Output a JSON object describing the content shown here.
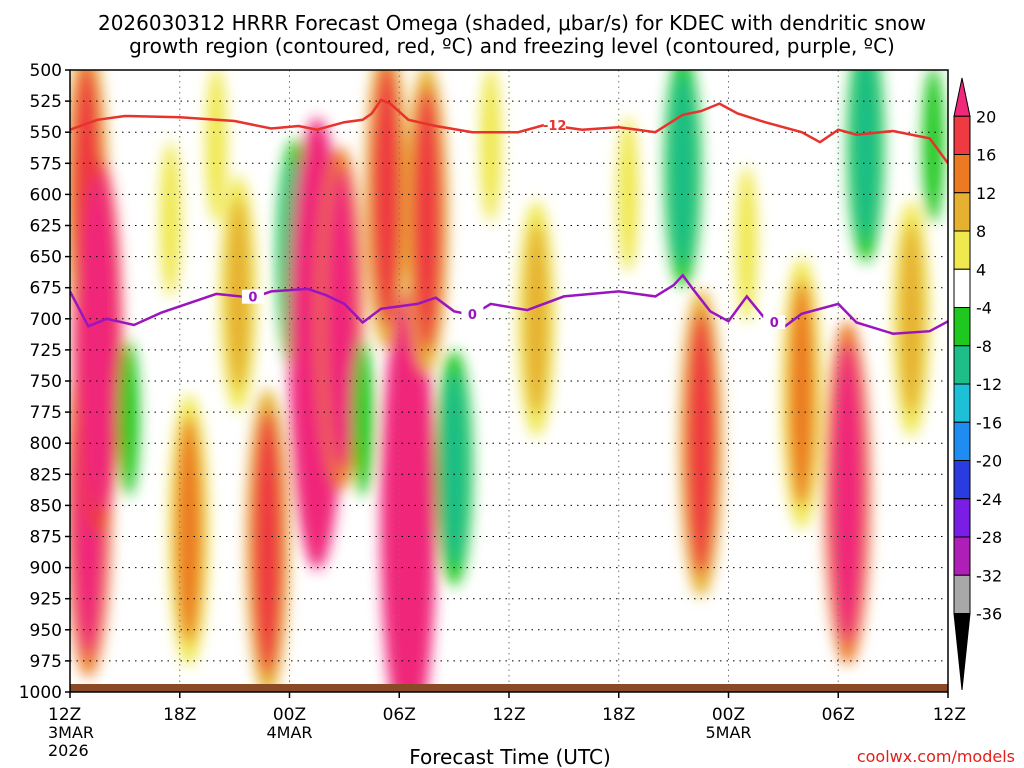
{
  "chart_data": {
    "type": "heatmap",
    "title_line1": "2026030312 HRRR Forecast Omega (shaded, μbar/s) for KDEC with dendritic snow",
    "title_line2": "growth region (contoured, red, ºC) and freezing level (contoured, purple, ºC)",
    "xlabel": "Forecast Time (UTC)",
    "credit": "coolwx.com/models",
    "x_ticks": [
      {
        "hour": 0,
        "label": "12Z",
        "date": "3MAR",
        "year": "2026"
      },
      {
        "hour": 6,
        "label": "18Z"
      },
      {
        "hour": 12,
        "label": "00Z",
        "date": "4MAR"
      },
      {
        "hour": 18,
        "label": "06Z"
      },
      {
        "hour": 24,
        "label": "12Z"
      },
      {
        "hour": 30,
        "label": "18Z"
      },
      {
        "hour": 36,
        "label": "00Z",
        "date": "5MAR"
      },
      {
        "hour": 42,
        "label": "06Z"
      },
      {
        "hour": 48,
        "label": "12Z"
      }
    ],
    "xlim_hours": [
      0,
      48
    ],
    "y_ticks": [
      500,
      525,
      550,
      575,
      600,
      625,
      650,
      675,
      700,
      725,
      750,
      775,
      800,
      825,
      850,
      875,
      900,
      925,
      950,
      975,
      1000
    ],
    "ylim_hpa": [
      500,
      1000
    ],
    "grid": true,
    "colorbar": {
      "labels": [
        "20",
        "16",
        "12",
        "8",
        "4",
        "-4",
        "-8",
        "-12",
        "-16",
        "-20",
        "-24",
        "-28",
        "-32",
        "-36"
      ],
      "colors": [
        "#f0287a",
        "#ee3a40",
        "#ec7a22",
        "#e6b030",
        "#efe84e",
        "#ffffff",
        "#1ec81e",
        "#1ebe88",
        "#1ec0d8",
        "#1e8cf0",
        "#2a3ce0",
        "#7a1ee6",
        "#b01eb8",
        "#a8a8a8",
        "#000000"
      ]
    },
    "omega_cells": [
      {
        "t": 0.9,
        "p": 600,
        "lvl": 4
      },
      {
        "t": 1.0,
        "p": 850,
        "lvl": 5
      },
      {
        "t": 1.5,
        "p": 720,
        "lvl": 6
      },
      {
        "t": 3.2,
        "p": 780,
        "lvl": -1
      },
      {
        "t": 5.5,
        "p": 620,
        "lvl": 1
      },
      {
        "t": 6.5,
        "p": 870,
        "lvl": 3
      },
      {
        "t": 8.0,
        "p": 560,
        "lvl": 1
      },
      {
        "t": 9.2,
        "p": 680,
        "lvl": 2
      },
      {
        "t": 10.8,
        "p": 880,
        "lvl": 4
      },
      {
        "t": 12.3,
        "p": 650,
        "lvl": -2
      },
      {
        "t": 13.5,
        "p": 720,
        "lvl": 8
      },
      {
        "t": 14.8,
        "p": 700,
        "lvl": 5
      },
      {
        "t": 16.0,
        "p": 780,
        "lvl": -1
      },
      {
        "t": 17.3,
        "p": 600,
        "lvl": 4
      },
      {
        "t": 18.5,
        "p": 860,
        "lvl": 8
      },
      {
        "t": 19.5,
        "p": 620,
        "lvl": 4
      },
      {
        "t": 21.0,
        "p": 820,
        "lvl": -2
      },
      {
        "t": 23.0,
        "p": 560,
        "lvl": 1
      },
      {
        "t": 25.5,
        "p": 700,
        "lvl": 2
      },
      {
        "t": 28.0,
        "p": 720,
        "lvl": 0
      },
      {
        "t": 30.5,
        "p": 600,
        "lvl": 1
      },
      {
        "t": 33.5,
        "p": 580,
        "lvl": -2
      },
      {
        "t": 34.5,
        "p": 800,
        "lvl": 4
      },
      {
        "t": 37.0,
        "p": 640,
        "lvl": 1
      },
      {
        "t": 40.0,
        "p": 760,
        "lvl": 3
      },
      {
        "t": 42.5,
        "p": 840,
        "lvl": 5
      },
      {
        "t": 43.5,
        "p": 560,
        "lvl": -2
      },
      {
        "t": 46.0,
        "p": 700,
        "lvl": 2
      },
      {
        "t": 47.2,
        "p": 560,
        "lvl": -1
      }
    ],
    "dgz_contour": {
      "label": "-12",
      "points": [
        [
          0,
          548
        ],
        [
          1.5,
          540
        ],
        [
          3,
          537
        ],
        [
          6,
          538
        ],
        [
          9,
          541
        ],
        [
          11,
          547
        ],
        [
          12.5,
          545
        ],
        [
          13.5,
          548
        ],
        [
          15,
          542
        ],
        [
          16,
          540
        ],
        [
          16.5,
          535
        ],
        [
          17,
          524
        ],
        [
          17.5,
          527
        ],
        [
          18.5,
          540
        ],
        [
          20,
          545
        ],
        [
          22,
          550
        ],
        [
          24.5,
          550
        ],
        [
          26,
          544
        ],
        [
          28,
          548
        ],
        [
          30,
          546
        ],
        [
          32,
          550
        ],
        [
          33.5,
          536
        ],
        [
          34.5,
          533
        ],
        [
          35.5,
          527
        ],
        [
          36.5,
          535
        ],
        [
          38,
          542
        ],
        [
          40,
          550
        ],
        [
          41,
          558
        ],
        [
          42,
          548
        ],
        [
          43,
          552
        ],
        [
          45,
          549
        ],
        [
          47,
          555
        ],
        [
          48,
          575
        ]
      ]
    },
    "freezing_contour": {
      "label": "0",
      "points": [
        [
          0,
          678
        ],
        [
          1,
          706
        ],
        [
          2,
          700
        ],
        [
          3.5,
          705
        ],
        [
          5,
          695
        ],
        [
          8,
          680
        ],
        [
          10,
          683
        ],
        [
          11,
          678
        ],
        [
          13,
          676
        ],
        [
          14,
          681
        ],
        [
          15,
          688
        ],
        [
          16,
          703
        ],
        [
          17,
          692
        ],
        [
          19,
          688
        ],
        [
          20,
          683
        ],
        [
          21,
          694
        ],
        [
          22,
          697
        ],
        [
          23,
          688
        ],
        [
          25,
          693
        ],
        [
          27,
          682
        ],
        [
          30,
          678
        ],
        [
          32,
          682
        ],
        [
          33,
          673
        ],
        [
          33.5,
          665
        ],
        [
          34,
          675
        ],
        [
          35,
          694
        ],
        [
          36,
          702
        ],
        [
          37,
          682
        ],
        [
          38,
          700
        ],
        [
          39,
          707
        ],
        [
          40,
          696
        ],
        [
          42,
          688
        ],
        [
          43,
          703
        ],
        [
          45,
          712
        ],
        [
          47,
          710
        ],
        [
          48,
          702
        ]
      ]
    }
  }
}
